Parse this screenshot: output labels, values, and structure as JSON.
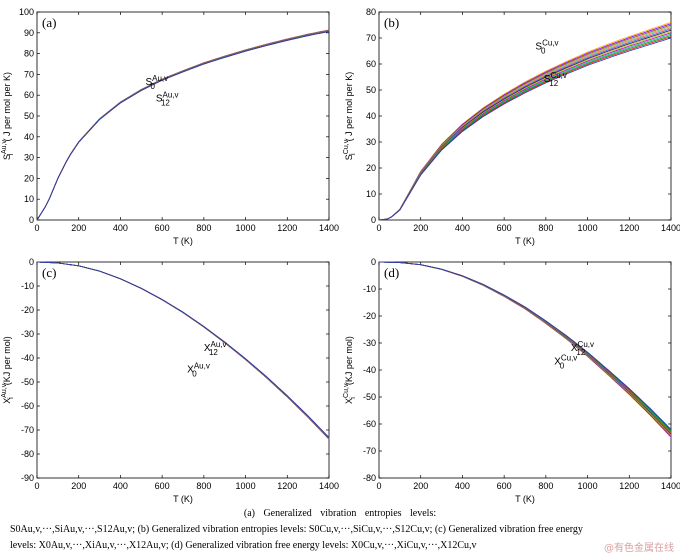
{
  "chart_data": [
    {
      "type": "line",
      "panel_label": "(a)",
      "xlabel": "T   (K)",
      "ylabel": "S_i^Au,v   ( J  per mol per K)",
      "ylabel_main": "S",
      "ylabel_sub": "i",
      "ylabel_sup": "Au,v",
      "ylabel_rest": "  ( J  per mol per K)",
      "xlim": [
        0,
        1400
      ],
      "ylim": [
        0,
        100
      ],
      "xticks": [
        "0",
        "200",
        "400",
        "600",
        "800",
        "1000",
        "1200",
        "1400"
      ],
      "yticks": [
        "0",
        "10",
        "20",
        "30",
        "40",
        "50",
        "60",
        "70",
        "80",
        "90",
        "100"
      ],
      "annotations": [
        {
          "main": "S",
          "sub": "0",
          "sup": "Au,v",
          "x": 520,
          "y": 65
        },
        {
          "main": "S",
          "sub": "12",
          "sup": "Au,v",
          "x": 570,
          "y": 57
        }
      ],
      "series_count": 13,
      "series_spread_at_max": 0.8,
      "x": [
        0,
        50,
        100,
        150,
        200,
        300,
        400,
        500,
        600,
        700,
        800,
        900,
        1000,
        1100,
        1200,
        1300,
        1400
      ],
      "y": [
        0,
        8,
        20,
        30,
        37.5,
        48.5,
        56.5,
        62.5,
        67.5,
        71.5,
        75.3,
        78.5,
        81.5,
        84.2,
        86.7,
        89,
        91
      ]
    },
    {
      "type": "line",
      "panel_label": "(b)",
      "xlabel": "T   (K)",
      "ylabel_main": "S",
      "ylabel_sub": "i",
      "ylabel_sup": "Cu,v",
      "ylabel_rest": "  ( J  per mol per K)",
      "xlim": [
        0,
        1400
      ],
      "ylim": [
        0,
        80
      ],
      "xticks": [
        "0",
        "200",
        "400",
        "600",
        "800",
        "1000",
        "1200",
        "1400"
      ],
      "yticks": [
        "0",
        "10",
        "20",
        "30",
        "40",
        "50",
        "60",
        "70",
        "80"
      ],
      "annotations": [
        {
          "main": "S",
          "sub": "0",
          "sup": "Cu,v",
          "x": 750,
          "y": 65.5
        },
        {
          "main": "S",
          "sub": "12",
          "sup": "Cu,v",
          "x": 790,
          "y": 53
        }
      ],
      "series_count": 13,
      "series_spread_at_max": 6,
      "x": [
        0,
        50,
        100,
        150,
        200,
        300,
        400,
        500,
        600,
        700,
        800,
        900,
        1000,
        1100,
        1200,
        1300,
        1400
      ],
      "y": [
        0,
        0.5,
        4,
        11,
        18,
        28,
        35.5,
        41.5,
        46.5,
        51,
        55,
        58.6,
        62,
        65,
        67.8,
        70.4,
        73
      ]
    },
    {
      "type": "line",
      "panel_label": "(c)",
      "xlabel": "T   (K)",
      "ylabel_main": "X",
      "ylabel_sub": "i",
      "ylabel_sup": "Au,v",
      "ylabel_rest": "  (KJ per mol)",
      "xlim": [
        0,
        1400
      ],
      "ylim": [
        -90,
        0
      ],
      "xticks": [
        "0",
        "200",
        "400",
        "600",
        "800",
        "1000",
        "1200",
        "1400"
      ],
      "yticks": [
        "0",
        "-10",
        "-20",
        "-30",
        "-40",
        "-50",
        "-60",
        "-70",
        "-80",
        "-90"
      ],
      "annotations": [
        {
          "main": "X",
          "sub": "12",
          "sup": "Au,v",
          "x": 800,
          "y": -37
        },
        {
          "main": "X",
          "sub": "0",
          "sup": "Au,v",
          "x": 720,
          "y": -46
        }
      ],
      "series_count": 13,
      "series_spread_at_max": 0.8,
      "x": [
        0,
        100,
        200,
        300,
        400,
        500,
        600,
        700,
        800,
        900,
        1000,
        1100,
        1200,
        1300,
        1400
      ],
      "y": [
        0,
        -0.4,
        -1.6,
        -3.8,
        -7,
        -11,
        -15.7,
        -21,
        -27,
        -33.5,
        -40.5,
        -48,
        -56,
        -64.5,
        -73.5
      ]
    },
    {
      "type": "line",
      "panel_label": "(d)",
      "xlabel": "T   (K)",
      "ylabel_main": "X",
      "ylabel_sub": "i",
      "ylabel_sup": "Cu,v",
      "ylabel_rest": "  (KJ per mol)",
      "xlim": [
        0,
        1400
      ],
      "ylim": [
        -80,
        0
      ],
      "xticks": [
        "0",
        "200",
        "400",
        "600",
        "800",
        "1000",
        "1200",
        "1400"
      ],
      "yticks": [
        "0",
        "-10",
        "-20",
        "-30",
        "-40",
        "-50",
        "-60",
        "-70",
        "-80"
      ],
      "annotations": [
        {
          "main": "X",
          "sub": "12",
          "sup": "Cu,v",
          "x": 920,
          "y": -33
        },
        {
          "main": "X",
          "sub": "0",
          "sup": "Cu,v",
          "x": 840,
          "y": -38
        }
      ],
      "series_count": 13,
      "series_spread_at_max": 3,
      "x": [
        0,
        100,
        200,
        300,
        400,
        500,
        600,
        700,
        800,
        900,
        1000,
        1100,
        1200,
        1300,
        1400
      ],
      "y": [
        0,
        -0.2,
        -1,
        -2.7,
        -5.2,
        -8.5,
        -12.5,
        -17,
        -22.3,
        -28,
        -34.2,
        -41,
        -48,
        -55.5,
        -63.5
      ]
    }
  ],
  "caption": {
    "line1": "(a)   Generalized   vibration   entropies   levels:",
    "line2": "S0Au,v,···,SiAu,v,···,S12Au,v; (b) Generalized vibration entropies levels:  S0Cu,v,···,SiCu,v,···,S12Cu,v;   (c) Generalized vibration free energy",
    "line3": "levels:  X0Au,v,···,XiAu,v,···,X12Au,v; (d) Generalized vibration free energy levels:  X0Cu,v,···,XiCu,v,···,X12Cu,v"
  },
  "watermark": "@有色金属在线",
  "colors": [
    "#1f3fbf",
    "#e01010",
    "#00a000",
    "#00b0b0",
    "#c000c0",
    "#c0c000",
    "#202020",
    "#3060ff",
    "#ff6060",
    "#60c060",
    "#a05000",
    "#8000ff",
    "#ffa000"
  ]
}
